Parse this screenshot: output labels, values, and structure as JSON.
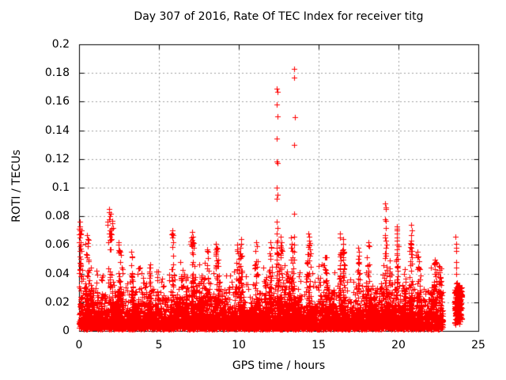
{
  "chart_data": {
    "type": "scatter",
    "title": "Day 307 of 2016, Rate Of TEC Index for receiver titg",
    "xlabel": "GPS time / hours",
    "ylabel": "ROTI / TECUs",
    "xlim": [
      0,
      25
    ],
    "ylim": [
      0,
      0.2
    ],
    "xticks": [
      0,
      5,
      10,
      15,
      20,
      25
    ],
    "xtick_labels": [
      "0",
      "5",
      "10",
      "15",
      "20",
      "25"
    ],
    "yticks": [
      0,
      0.02,
      0.04,
      0.06,
      0.08,
      0.1,
      0.12,
      0.14,
      0.16,
      0.18,
      0.2
    ],
    "ytick_labels": [
      "0",
      "0.02",
      "0.04",
      "0.06",
      "0.08",
      "0.1",
      "0.12",
      "0.14",
      "0.16",
      "0.18",
      "0.2"
    ],
    "grid": true,
    "grid_color": "#a0a0a0",
    "border_color": "#000000",
    "marker": {
      "glyph": "plus",
      "color": "#ff0000",
      "size": 7
    },
    "legend": "none",
    "outlier_points": [
      [
        12.38,
        0.169
      ],
      [
        12.42,
        0.167
      ],
      [
        12.4,
        0.158
      ],
      [
        12.41,
        0.15
      ],
      [
        12.4,
        0.134
      ],
      [
        12.38,
        0.118
      ],
      [
        12.42,
        0.117
      ],
      [
        12.4,
        0.1
      ],
      [
        12.41,
        0.095
      ],
      [
        12.38,
        0.092
      ],
      [
        12.4,
        0.076
      ],
      [
        12.43,
        0.072
      ],
      [
        12.39,
        0.068
      ],
      [
        12.41,
        0.063
      ],
      [
        12.4,
        0.058
      ],
      [
        12.42,
        0.054
      ],
      [
        12.38,
        0.05
      ],
      [
        13.48,
        0.183
      ],
      [
        13.48,
        0.177
      ],
      [
        13.5,
        0.149
      ],
      [
        13.49,
        0.13
      ],
      [
        13.46,
        0.082
      ],
      [
        13.47,
        0.066
      ],
      [
        13.49,
        0.06
      ],
      [
        13.45,
        0.055
      ],
      [
        13.48,
        0.05
      ],
      [
        19.18,
        0.089
      ],
      [
        19.21,
        0.086
      ],
      [
        19.19,
        0.085
      ],
      [
        19.17,
        0.078
      ],
      [
        19.22,
        0.077
      ],
      [
        19.2,
        0.072
      ],
      [
        19.18,
        0.067
      ],
      [
        19.21,
        0.063
      ],
      [
        19.19,
        0.058
      ],
      [
        19.2,
        0.054
      ],
      [
        19.88,
        0.073
      ],
      [
        19.91,
        0.071
      ],
      [
        19.9,
        0.07
      ],
      [
        19.89,
        0.068
      ],
      [
        19.92,
        0.065
      ],
      [
        19.9,
        0.063
      ],
      [
        19.88,
        0.06
      ],
      [
        19.91,
        0.057
      ],
      [
        19.9,
        0.054
      ],
      [
        20.8,
        0.074
      ],
      [
        20.82,
        0.07
      ],
      [
        20.79,
        0.067
      ],
      [
        20.81,
        0.063
      ],
      [
        20.8,
        0.06
      ],
      [
        20.82,
        0.056
      ],
      [
        1.88,
        0.085
      ],
      [
        1.9,
        0.083
      ],
      [
        1.92,
        0.08
      ],
      [
        1.89,
        0.078
      ],
      [
        2.08,
        0.077
      ],
      [
        2.1,
        0.075
      ],
      [
        2.12,
        0.072
      ],
      [
        1.95,
        0.07
      ],
      [
        2.0,
        0.068
      ],
      [
        1.91,
        0.066
      ],
      [
        2.05,
        0.064
      ],
      [
        1.85,
        0.062
      ],
      [
        0.04,
        0.076
      ],
      [
        0.06,
        0.073
      ],
      [
        0.03,
        0.07
      ],
      [
        0.08,
        0.068
      ],
      [
        0.05,
        0.065
      ],
      [
        0.02,
        0.062
      ],
      [
        0.07,
        0.059
      ],
      [
        0.05,
        0.056
      ],
      [
        0.03,
        0.052
      ],
      [
        0.48,
        0.067
      ],
      [
        0.52,
        0.064
      ],
      [
        5.83,
        0.07
      ],
      [
        5.86,
        0.068
      ],
      [
        5.88,
        0.067
      ],
      [
        5.84,
        0.065
      ],
      [
        7.08,
        0.069
      ],
      [
        7.11,
        0.066
      ],
      [
        7.13,
        0.062
      ],
      [
        7.09,
        0.059
      ],
      [
        14.38,
        0.068
      ],
      [
        14.41,
        0.066
      ],
      [
        14.43,
        0.063
      ],
      [
        14.39,
        0.06
      ],
      [
        16.33,
        0.068
      ],
      [
        16.36,
        0.065
      ],
      [
        16.52,
        0.064
      ],
      [
        16.55,
        0.061
      ],
      [
        23.58,
        0.066
      ],
      [
        23.61,
        0.061
      ],
      [
        23.59,
        0.058
      ],
      [
        23.62,
        0.056
      ],
      [
        23.6,
        0.048
      ],
      [
        23.63,
        0.044
      ],
      [
        23.59,
        0.04
      ],
      [
        23.61,
        0.033
      ],
      [
        10.13,
        0.064
      ],
      [
        10.16,
        0.061
      ],
      [
        11.08,
        0.062
      ],
      [
        11.12,
        0.059
      ],
      [
        11.98,
        0.062
      ],
      [
        12.02,
        0.058
      ],
      [
        12.64,
        0.066
      ],
      [
        12.66,
        0.062
      ],
      [
        13.28,
        0.065
      ],
      [
        13.32,
        0.061
      ],
      [
        8.58,
        0.061
      ],
      [
        8.62,
        0.058
      ],
      [
        9.88,
        0.06
      ],
      [
        9.92,
        0.057
      ],
      [
        17.48,
        0.058
      ],
      [
        17.52,
        0.055
      ],
      [
        18.13,
        0.062
      ],
      [
        18.17,
        0.059
      ],
      [
        21.18,
        0.055
      ],
      [
        21.22,
        0.052
      ],
      [
        22.28,
        0.05
      ],
      [
        22.32,
        0.048
      ],
      [
        8.03,
        0.057
      ],
      [
        8.06,
        0.055
      ],
      [
        3.28,
        0.055
      ],
      [
        3.32,
        0.052
      ]
    ],
    "burst_clusters": [
      {
        "x": 0.1,
        "peak": 0.072,
        "width": 0.15
      },
      {
        "x": 0.5,
        "peak": 0.064,
        "width": 0.2
      },
      {
        "x": 1.9,
        "peak": 0.082,
        "width": 0.25
      },
      {
        "x": 2.5,
        "peak": 0.063,
        "width": 0.2
      },
      {
        "x": 3.3,
        "peak": 0.055,
        "width": 0.2
      },
      {
        "x": 4.4,
        "peak": 0.048,
        "width": 0.25
      },
      {
        "x": 5.85,
        "peak": 0.068,
        "width": 0.15
      },
      {
        "x": 7.1,
        "peak": 0.066,
        "width": 0.2
      },
      {
        "x": 8.05,
        "peak": 0.057,
        "width": 0.25
      },
      {
        "x": 8.6,
        "peak": 0.06,
        "width": 0.15
      },
      {
        "x": 9.9,
        "peak": 0.058,
        "width": 0.2
      },
      {
        "x": 10.15,
        "peak": 0.062,
        "width": 0.15
      },
      {
        "x": 11.1,
        "peak": 0.06,
        "width": 0.2
      },
      {
        "x": 12.0,
        "peak": 0.06,
        "width": 0.2
      },
      {
        "x": 12.4,
        "peak": 0.062,
        "width": 0.15
      },
      {
        "x": 12.65,
        "peak": 0.06,
        "width": 0.1
      },
      {
        "x": 13.3,
        "peak": 0.06,
        "width": 0.15
      },
      {
        "x": 14.4,
        "peak": 0.063,
        "width": 0.2
      },
      {
        "x": 15.4,
        "peak": 0.055,
        "width": 0.2
      },
      {
        "x": 16.35,
        "peak": 0.064,
        "width": 0.15
      },
      {
        "x": 16.55,
        "peak": 0.06,
        "width": 0.1
      },
      {
        "x": 17.5,
        "peak": 0.056,
        "width": 0.2
      },
      {
        "x": 18.1,
        "peak": 0.06,
        "width": 0.2
      },
      {
        "x": 19.2,
        "peak": 0.066,
        "width": 0.15
      },
      {
        "x": 19.9,
        "peak": 0.062,
        "width": 0.2
      },
      {
        "x": 20.8,
        "peak": 0.062,
        "width": 0.15
      },
      {
        "x": 21.2,
        "peak": 0.054,
        "width": 0.2
      },
      {
        "x": 22.3,
        "peak": 0.049,
        "width": 0.2
      },
      {
        "x": 22.6,
        "peak": 0.046,
        "width": 0.15
      }
    ],
    "noise_band": {
      "x_range": [
        0,
        22.78
      ],
      "floor": 0.0012,
      "mean": 0.0085,
      "cap": 0.048,
      "n_points": 6500,
      "texture_bursts": {
        "count": 60,
        "peak_range": [
          0.026,
          0.05
        ],
        "points_each": 12
      }
    },
    "detached_cluster": {
      "x_center": 23.72,
      "x_spread": 0.18,
      "y_range": [
        0.004,
        0.035
      ],
      "n_points": 300
    }
  }
}
